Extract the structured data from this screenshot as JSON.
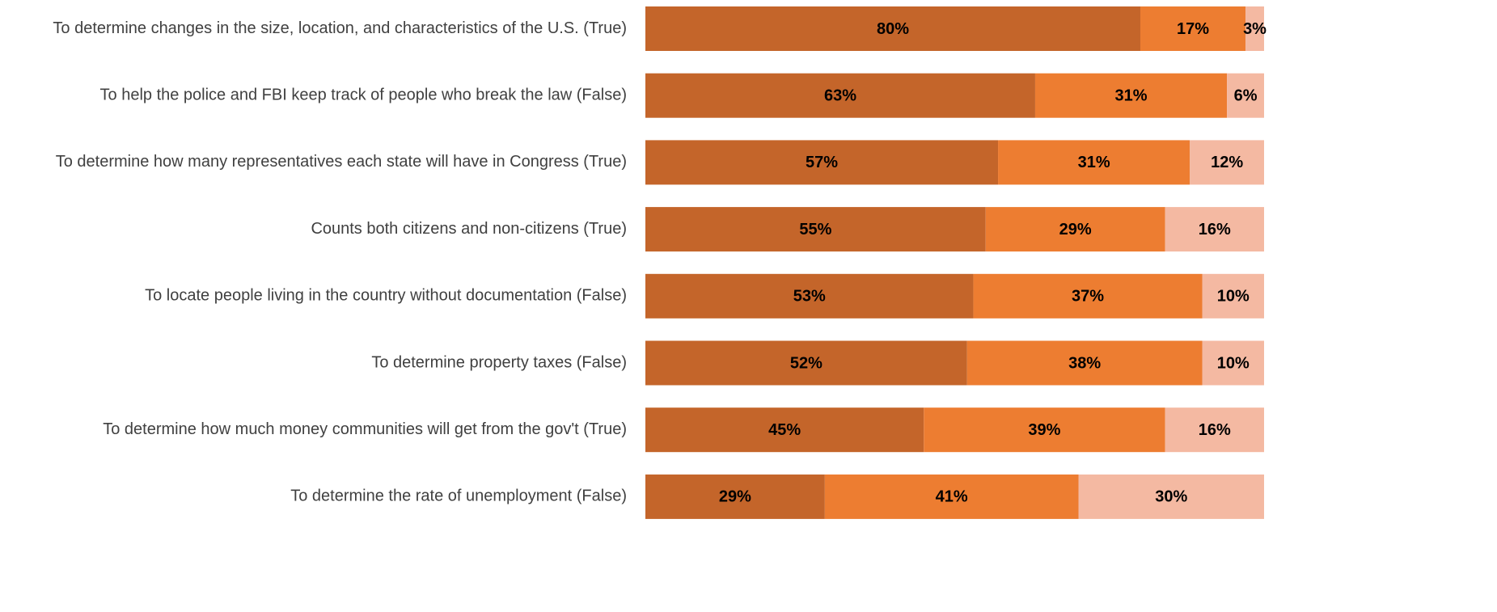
{
  "chart_data": {
    "type": "stacked-bar",
    "orientation": "horizontal",
    "categories": [
      "To determine changes in the size, location, and characteristics of the U.S. (True)",
      "To help the police and FBI keep track of people who break the law (False)",
      "To determine how many representatives each state will have in Congress (True)",
      "Counts both citizens and non-citizens (True)",
      "To locate people living in the country without documentation (False)",
      "To determine property taxes (False)",
      "To determine how much money communities will get from the gov't (True)",
      "To determine the rate of unemployment (False)"
    ],
    "series": [
      {
        "color": "#c4652a",
        "values": [
          80,
          63,
          57,
          55,
          53,
          52,
          45,
          29
        ],
        "value_labels": [
          "80%",
          "63%",
          "57%",
          "55%",
          "53%",
          "52%",
          "45%",
          "29%"
        ]
      },
      {
        "color": "#ed7d31",
        "values": [
          17,
          31,
          31,
          29,
          37,
          38,
          39,
          41
        ],
        "value_labels": [
          "17%",
          "31%",
          "31%",
          "29%",
          "37%",
          "38%",
          "39%",
          "41%"
        ]
      },
      {
        "color": "#f4b9a2",
        "values": [
          3,
          6,
          12,
          16,
          10,
          10,
          16,
          30
        ],
        "value_labels": [
          "3%",
          "6%",
          "12%",
          "16%",
          "10%",
          "10%",
          "16%",
          "30%"
        ]
      }
    ],
    "xlim": [
      0,
      100
    ]
  }
}
